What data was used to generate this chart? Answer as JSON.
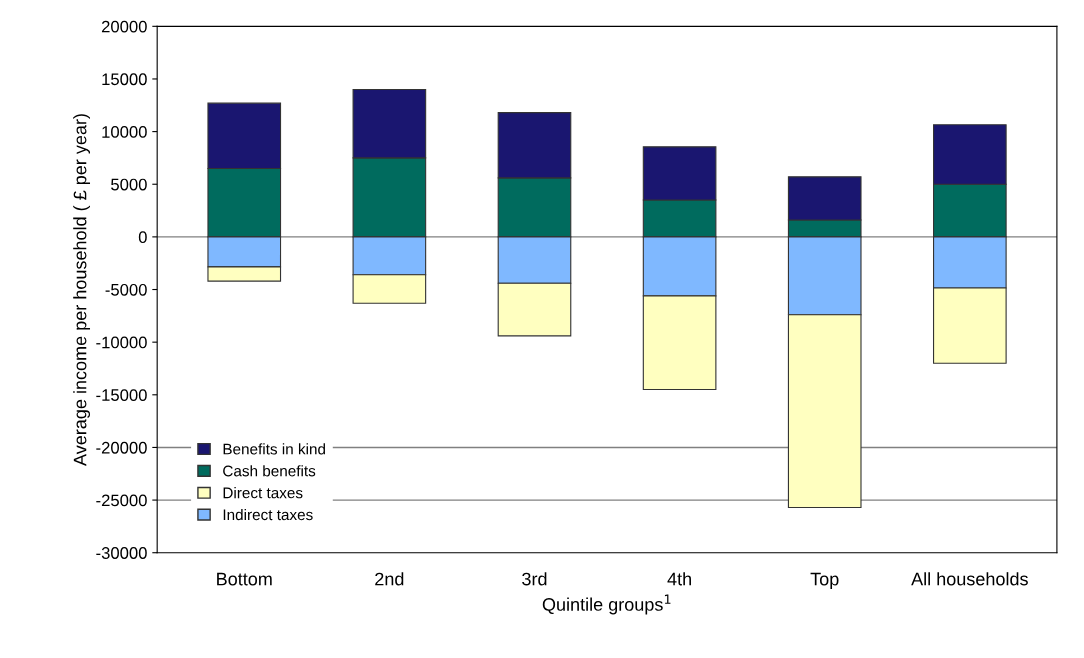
{
  "chart_data": {
    "type": "bar",
    "stacked": true,
    "xlabel": "Quintile groups$^{1}$",
    "ylabel": "Average income per household ( £ per year)",
    "categories": [
      "Bottom",
      "2nd",
      "3rd",
      "4th",
      "Top",
      "All households"
    ],
    "series": [
      {
        "name": "Cash benefits",
        "color": "#006b5e",
        "values": [
          6500,
          7500,
          5600,
          3500,
          1600,
          5000
        ]
      },
      {
        "name": "Benefits in kind",
        "color": "#1a1670",
        "values": [
          6200,
          6500,
          6200,
          5050,
          4100,
          5650
        ]
      },
      {
        "name": "Indirect taxes",
        "color": "#7fb8ff",
        "values": [
          -2850,
          -3600,
          -4400,
          -5600,
          -7400,
          -4850
        ]
      },
      {
        "name": "Direct taxes",
        "color": "#ffffc0",
        "values": [
          -1350,
          -2700,
          -5000,
          -8900,
          -18300,
          -7150
        ]
      }
    ],
    "ylim": [
      -30000,
      20000
    ],
    "yticks": [
      -30000,
      -25000,
      -20000,
      -15000,
      -10000,
      -5000,
      0,
      5000,
      10000,
      15000,
      20000
    ],
    "ref_lines": [
      {
        "axis": "y",
        "value": 0,
        "color": "#808080"
      },
      {
        "axis": "y",
        "value": -20000,
        "color": "#808080"
      },
      {
        "axis": "y",
        "value": -25000,
        "color": "#808080"
      }
    ],
    "legend": "lower left"
  }
}
